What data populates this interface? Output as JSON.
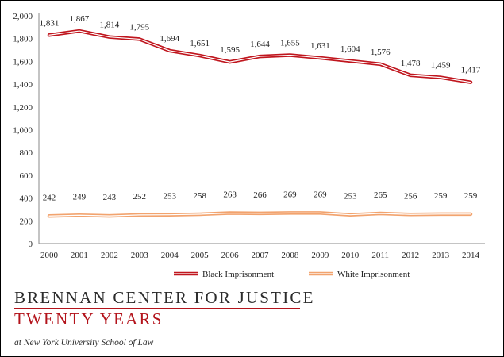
{
  "chart_data": {
    "type": "line",
    "title": "",
    "xlabel": "",
    "ylabel": "",
    "x": [
      "2000",
      "2001",
      "2002",
      "2003",
      "2004",
      "2005",
      "2006",
      "2007",
      "2008",
      "2009",
      "2010",
      "2011",
      "2012",
      "2013",
      "2014"
    ],
    "yticks": [
      "0",
      "200",
      "400",
      "600",
      "800",
      "1,000",
      "1,200",
      "1,400",
      "1,600",
      "1,800",
      "2,000"
    ],
    "ylim": [
      0,
      2000
    ],
    "grid": false,
    "legend_position": "bottom",
    "series": [
      {
        "name": "Black Imprisonment",
        "color": "#c0161e",
        "values": [
          1831,
          1867,
          1814,
          1795,
          1694,
          1651,
          1595,
          1644,
          1655,
          1631,
          1604,
          1576,
          1478,
          1459,
          1417
        ],
        "labels": [
          "1,831",
          "1,867",
          "1,814",
          "1,795",
          "1,694",
          "1,651",
          "1,595",
          "1,644",
          "1,655",
          "1,631",
          "1,604",
          "1,576",
          "1,478",
          "1,459",
          "1,417"
        ]
      },
      {
        "name": "White Imprisonment",
        "color": "#f2a36e",
        "values": [
          242,
          249,
          243,
          252,
          253,
          258,
          268,
          266,
          269,
          269,
          253,
          265,
          256,
          259,
          259
        ],
        "labels": [
          "242",
          "249",
          "243",
          "252",
          "253",
          "258",
          "268",
          "266",
          "269",
          "269",
          "253",
          "265",
          "256",
          "259",
          "259"
        ]
      }
    ]
  },
  "footer": {
    "org_name": "BRENNAN CENTER FOR JUSTICE",
    "org_subtitle": "TWENTY YEARS",
    "affiliation": "at New York University School of Law"
  }
}
